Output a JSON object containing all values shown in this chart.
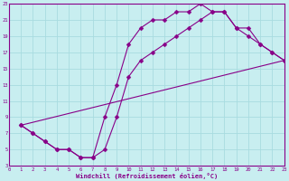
{
  "xlabel": "Windchill (Refroidissement éolien,°C)",
  "bg_color": "#c8eef0",
  "grid_color": "#a8dce0",
  "line_color": "#880088",
  "xlim": [
    0,
    23
  ],
  "ylim": [
    3,
    23
  ],
  "xticks": [
    0,
    1,
    2,
    3,
    4,
    5,
    6,
    7,
    8,
    9,
    10,
    11,
    12,
    13,
    14,
    15,
    16,
    17,
    18,
    19,
    20,
    21,
    22,
    23
  ],
  "yticks": [
    3,
    5,
    7,
    9,
    11,
    13,
    15,
    17,
    19,
    21,
    23
  ],
  "curve1_x": [
    1,
    2,
    3,
    4,
    5,
    6,
    7,
    8,
    9,
    10,
    11,
    12,
    13,
    14,
    15,
    16,
    17,
    18,
    19,
    20,
    21,
    22,
    23
  ],
  "curve1_y": [
    8,
    7,
    6,
    5,
    5,
    4,
    4,
    9,
    13,
    18,
    20,
    21,
    21,
    22,
    22,
    23,
    22,
    22,
    20,
    19,
    18,
    17,
    16
  ],
  "curve2_x": [
    1,
    2,
    3,
    4,
    5,
    6,
    7,
    8,
    9,
    10,
    11,
    12,
    13,
    14,
    15,
    16,
    17,
    18,
    19,
    20,
    21,
    22,
    23
  ],
  "curve2_y": [
    8,
    7,
    6,
    5,
    5,
    4,
    4,
    5,
    9,
    14,
    16,
    17,
    18,
    19,
    20,
    21,
    22,
    22,
    20,
    20,
    18,
    17,
    16
  ],
  "curve3_x": [
    1,
    23
  ],
  "curve3_y": [
    8,
    16
  ]
}
